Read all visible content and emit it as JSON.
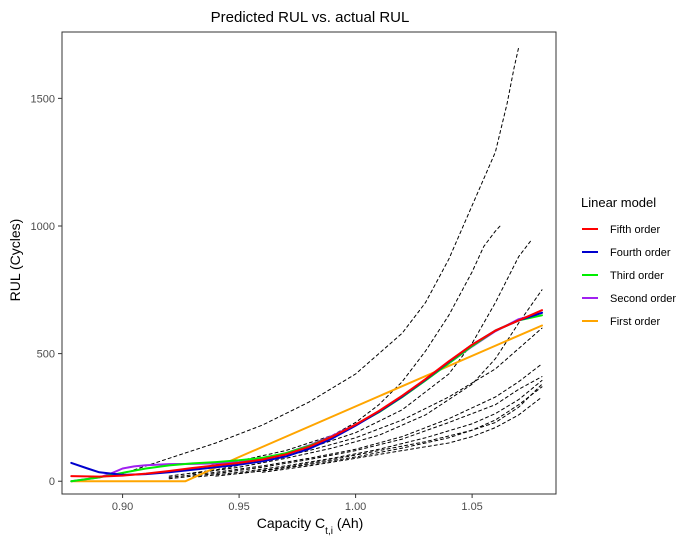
{
  "chart_data": {
    "type": "line",
    "title": "Predicted RUL vs. actual RUL",
    "xlabel_main": "Capacity C",
    "xlabel_sub": "t,i",
    "xlabel_unit": " (Ah)",
    "ylabel": "RUL (Cycles)",
    "xlim": [
      0.874,
      1.086
    ],
    "ylim": [
      -50,
      1760
    ],
    "x_ticks": [
      0.9,
      0.95,
      1.0,
      1.05
    ],
    "x_tick_labels": [
      "0.90",
      "0.95",
      "1.00",
      "1.05"
    ],
    "y_ticks": [
      0,
      500,
      1000,
      1500
    ],
    "y_tick_labels": [
      "0",
      "500",
      "1000",
      "1500"
    ],
    "grid": false,
    "legend": {
      "title": "Linear model",
      "position": "right",
      "entries": [
        "Fifth order",
        "Fourth order",
        "Third order",
        "Second order",
        "First order"
      ]
    },
    "colors": {
      "Fifth order": "#ff0000",
      "Fourth order": "#0000cd",
      "Third order": "#00ee00",
      "Second order": "#a020f0",
      "First order": "#ffa500",
      "actual": "#000000"
    },
    "series": [
      {
        "name": "Fifth order",
        "style": "solid",
        "x": [
          0.878,
          0.89,
          0.9,
          0.91,
          0.92,
          0.93,
          0.94,
          0.95,
          0.96,
          0.97,
          0.98,
          0.99,
          1.0,
          1.01,
          1.02,
          1.03,
          1.04,
          1.05,
          1.06,
          1.07,
          1.08
        ],
        "y": [
          20,
          18,
          22,
          30,
          40,
          52,
          62,
          72,
          85,
          105,
          135,
          175,
          222,
          275,
          335,
          400,
          470,
          535,
          590,
          630,
          670
        ]
      },
      {
        "name": "Fourth order",
        "style": "solid",
        "x": [
          0.878,
          0.885,
          0.89,
          0.9,
          0.91,
          0.92,
          0.93,
          0.94,
          0.95,
          0.96,
          0.97,
          0.98,
          0.99,
          1.0,
          1.01,
          1.02,
          1.03,
          1.04,
          1.05,
          1.06,
          1.07,
          1.08
        ],
        "y": [
          72,
          50,
          35,
          25,
          28,
          35,
          45,
          55,
          65,
          78,
          97,
          127,
          168,
          218,
          272,
          332,
          398,
          468,
          535,
          590,
          630,
          660
        ]
      },
      {
        "name": "Third order",
        "style": "solid",
        "x": [
          0.878,
          0.89,
          0.9,
          0.91,
          0.92,
          0.93,
          0.94,
          0.95,
          0.96,
          0.97,
          0.98,
          0.99,
          1.0,
          1.01,
          1.02,
          1.03,
          1.04,
          1.05,
          1.06,
          1.07,
          1.08
        ],
        "y": [
          0,
          15,
          33,
          50,
          62,
          70,
          75,
          82,
          92,
          110,
          138,
          175,
          220,
          270,
          330,
          395,
          462,
          530,
          590,
          630,
          650
        ]
      },
      {
        "name": "Second order",
        "style": "solid",
        "x": [
          0.878,
          0.89,
          0.895,
          0.9,
          0.905,
          0.91,
          0.92,
          0.93,
          0.94,
          0.95,
          0.96,
          0.97,
          0.98,
          0.99,
          1.0,
          1.01,
          1.02,
          1.03,
          1.04,
          1.05,
          1.06,
          1.07,
          1.08
        ],
        "y": [
          0,
          15,
          30,
          50,
          58,
          63,
          67,
          68,
          70,
          75,
          88,
          110,
          140,
          178,
          222,
          272,
          330,
          395,
          462,
          528,
          588,
          635,
          660
        ]
      },
      {
        "name": "First order",
        "style": "solid",
        "x": [
          0.878,
          0.927,
          0.95,
          1.08
        ],
        "y": [
          0,
          0,
          95,
          610
        ]
      },
      {
        "name": "",
        "group": "actual",
        "style": "dashed",
        "x": [
          0.9,
          0.92,
          0.94,
          0.96,
          0.98,
          1.0,
          1.02,
          1.03,
          1.04,
          1.05,
          1.06,
          1.065,
          1.068,
          1.07
        ],
        "y": [
          30,
          90,
          150,
          220,
          310,
          420,
          580,
          700,
          870,
          1080,
          1290,
          1480,
          1620,
          1700
        ]
      },
      {
        "name": "",
        "group": "actual",
        "style": "dashed",
        "x": [
          0.93,
          0.95,
          0.97,
          0.99,
          1.0,
          1.01,
          1.02,
          1.03,
          1.04,
          1.05,
          1.055,
          1.06,
          1.062
        ],
        "y": [
          50,
          80,
          120,
          180,
          230,
          300,
          390,
          510,
          650,
          820,
          920,
          980,
          1000
        ]
      },
      {
        "name": "",
        "group": "actual",
        "style": "dashed",
        "x": [
          0.94,
          0.96,
          0.98,
          1.0,
          1.02,
          1.04,
          1.05,
          1.06,
          1.07,
          1.075
        ],
        "y": [
          60,
          90,
          130,
          190,
          280,
          420,
          540,
          700,
          880,
          940
        ]
      },
      {
        "name": "",
        "group": "actual",
        "style": "dashed",
        "x": [
          0.93,
          0.95,
          0.97,
          0.99,
          1.01,
          1.03,
          1.05,
          1.06,
          1.07,
          1.08
        ],
        "y": [
          30,
          55,
          90,
          130,
          180,
          260,
          380,
          480,
          620,
          750
        ]
      },
      {
        "name": "",
        "group": "actual",
        "style": "dashed",
        "x": [
          0.92,
          0.94,
          0.96,
          0.98,
          1.0,
          1.02,
          1.04,
          1.06,
          1.07,
          1.08
        ],
        "y": [
          20,
          45,
          80,
          120,
          170,
          240,
          330,
          440,
          520,
          600
        ]
      },
      {
        "name": "",
        "group": "actual",
        "style": "dashed",
        "x": [
          0.92,
          0.94,
          0.96,
          0.98,
          1.0,
          1.02,
          1.04,
          1.06,
          1.07,
          1.08
        ],
        "y": [
          15,
          35,
          60,
          90,
          125,
          175,
          245,
          330,
          390,
          460
        ]
      },
      {
        "name": "",
        "group": "actual",
        "style": "dashed",
        "x": [
          0.92,
          0.94,
          0.96,
          0.98,
          1.0,
          1.02,
          1.04,
          1.06,
          1.07,
          1.08
        ],
        "y": [
          10,
          30,
          55,
          85,
          120,
          165,
          230,
          300,
          360,
          410
        ]
      },
      {
        "name": "",
        "group": "actual",
        "style": "dashed",
        "x": [
          0.93,
          0.95,
          0.97,
          0.99,
          1.01,
          1.03,
          1.05,
          1.06,
          1.07,
          1.08
        ],
        "y": [
          15,
          35,
          60,
          90,
          125,
          170,
          225,
          265,
          320,
          395
        ]
      },
      {
        "name": "",
        "group": "actual",
        "style": "dashed",
        "x": [
          0.94,
          0.96,
          0.98,
          1.0,
          1.02,
          1.04,
          1.06,
          1.07,
          1.08
        ],
        "y": [
          20,
          40,
          65,
          95,
          130,
          170,
          230,
          290,
          380
        ]
      },
      {
        "name": "",
        "group": "actual",
        "style": "dashed",
        "x": [
          0.95,
          0.97,
          0.99,
          1.01,
          1.03,
          1.05,
          1.06,
          1.07,
          1.08
        ],
        "y": [
          30,
          55,
          85,
          120,
          155,
          200,
          240,
          300,
          370
        ]
      },
      {
        "name": "",
        "group": "actual",
        "style": "dashed",
        "x": [
          0.96,
          0.98,
          1.0,
          1.02,
          1.04,
          1.05,
          1.06,
          1.07,
          1.08
        ],
        "y": [
          35,
          60,
          90,
          120,
          150,
          175,
          210,
          260,
          330
        ]
      }
    ]
  }
}
